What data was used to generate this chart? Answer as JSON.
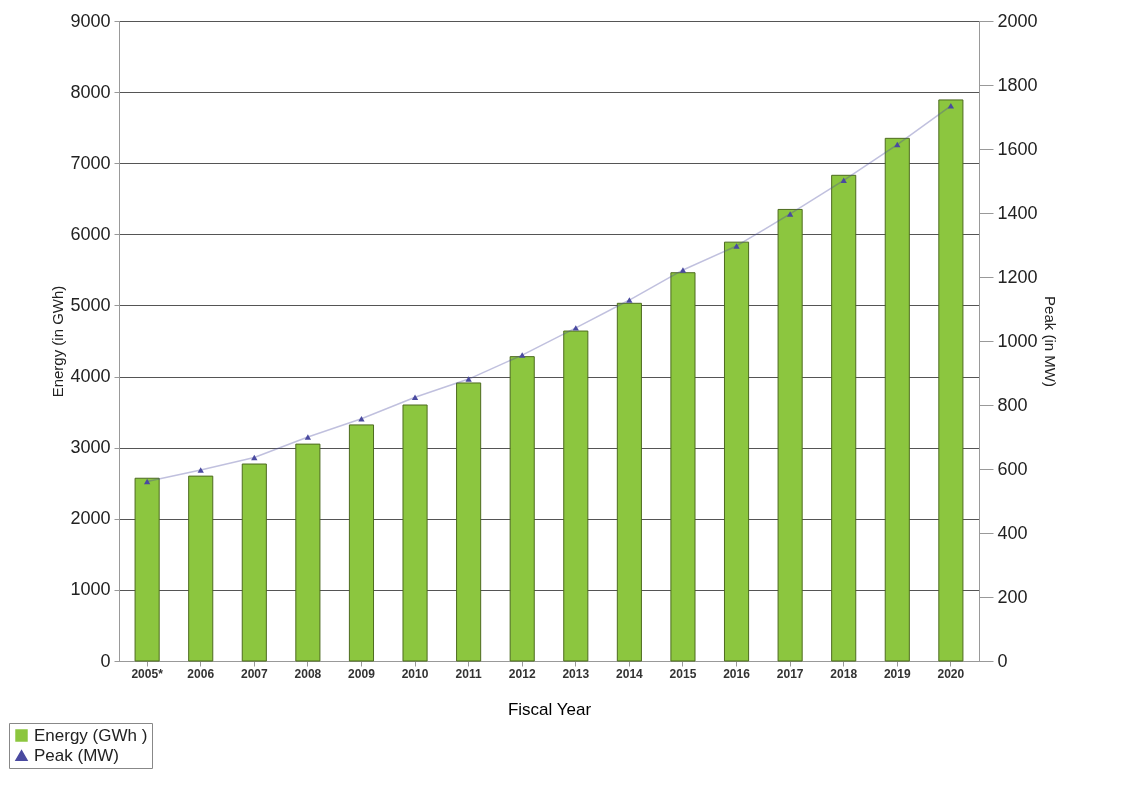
{
  "chart_data": {
    "type": "bar",
    "xlabel": "Fiscal Year",
    "ylabel": "Energy (in GWh)",
    "y2label": "Peak (in MW)",
    "categories": [
      "2005*",
      "2006",
      "2007",
      "2008",
      "2009",
      "2010",
      "2011",
      "2012",
      "2013",
      "2014",
      "2015",
      "2016",
      "2017",
      "2018",
      "2019",
      "2020"
    ],
    "series": [
      {
        "name": "Energy (GWh )",
        "color": "#8cc63f",
        "values": [
          2570,
          2600,
          2770,
          3050,
          3320,
          3600,
          3910,
          4280,
          4640,
          5030,
          5460,
          5890,
          6350,
          6830,
          7350,
          7890
        ]
      },
      {
        "name": "Peak (MW)",
        "type": "line",
        "axis": "y2",
        "color": "#4a4aa0",
        "marker": "triangle",
        "values": [
          561,
          597,
          636,
          700,
          757,
          824,
          881,
          956,
          1041,
          1128,
          1222,
          1297,
          1397,
          1502,
          1614,
          1735
        ]
      }
    ],
    "ylim": [
      0,
      9000
    ],
    "yticks": [
      0,
      1000,
      2000,
      3000,
      4000,
      5000,
      6000,
      7000,
      8000,
      9000
    ],
    "y2lim": [
      0,
      2000
    ],
    "y2ticks": [
      0,
      200,
      400,
      600,
      800,
      1000,
      1200,
      1400,
      1600,
      1800,
      2000
    ],
    "grid": "y",
    "legend": "bottom left"
  }
}
